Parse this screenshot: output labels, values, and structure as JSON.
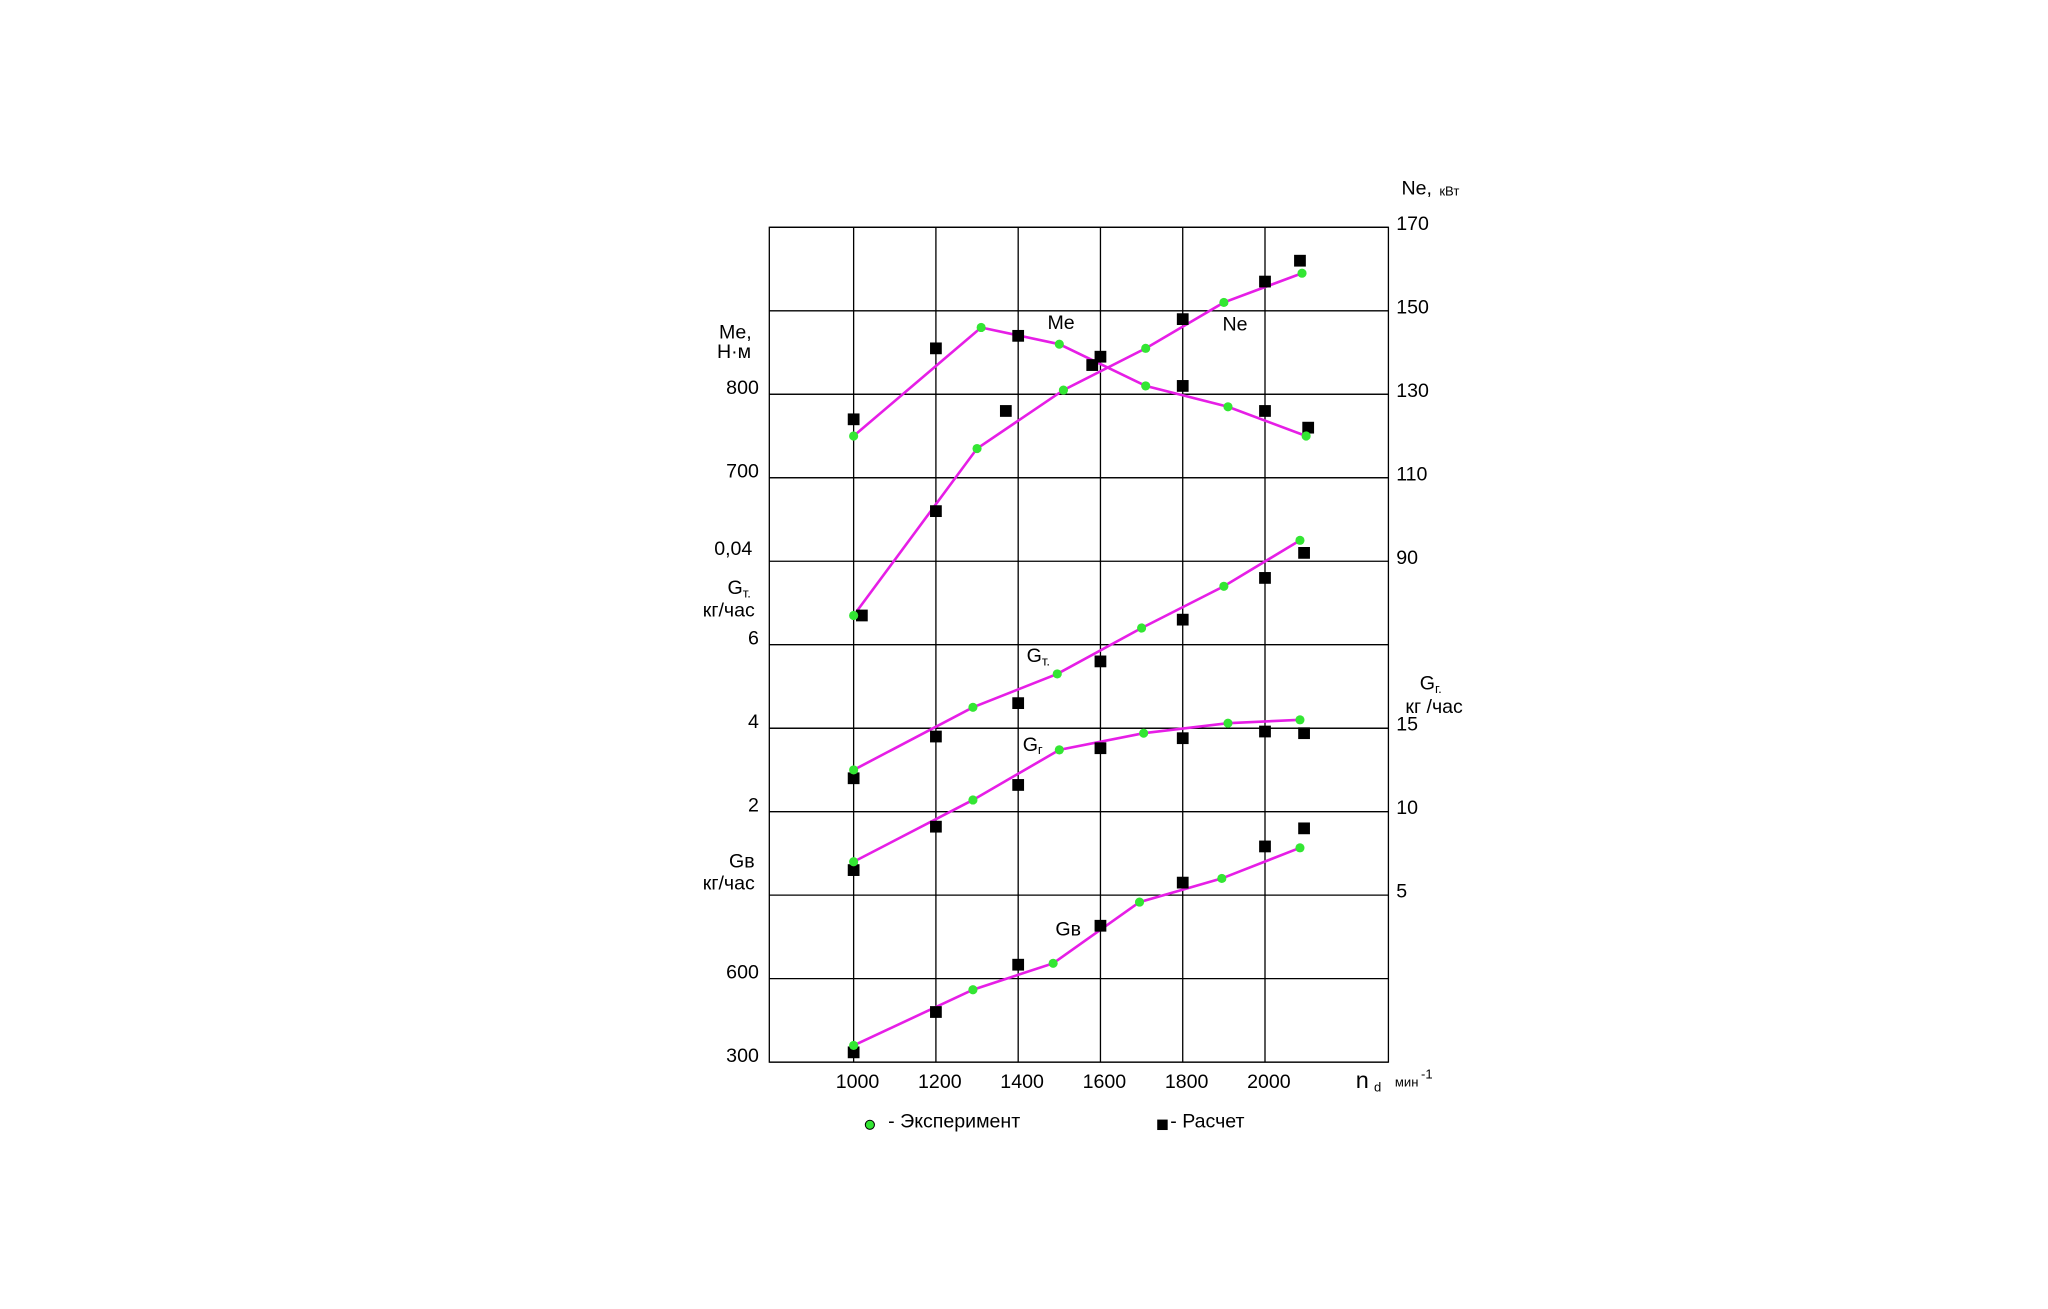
{
  "chart_data": {
    "type": "line",
    "xlim": [
      795,
      2300
    ],
    "xticks": [
      1000,
      1200,
      1400,
      1600,
      1800,
      2000
    ],
    "x_label": "n",
    "x_label_sub": "d",
    "x_unit": "мин",
    "x_unit_sup": "-1",
    "grid": true,
    "line_color": "#e61ee6",
    "annotation": "0,04",
    "axes": [
      {
        "title": "Me,",
        "unit": "Н·м",
        "side": "left",
        "ylim": [
          0,
          1000
        ],
        "yticks": [
          700,
          800
        ]
      },
      {
        "title": "Ne,",
        "unit": "кВт",
        "side": "right",
        "ylim": [
          -30,
          170
        ],
        "yticks": [
          90,
          110,
          130,
          150,
          170
        ]
      },
      {
        "title": "G",
        "title_sub": "т.",
        "unit": "кг/час",
        "side": "left",
        "ylim": [
          -4,
          16
        ],
        "yticks": [
          2,
          4,
          6
        ]
      },
      {
        "title": "G",
        "title_sub": "г.",
        "unit": "кг /час",
        "side": "right",
        "ylim": [
          -5,
          45
        ],
        "yticks": [
          5,
          10,
          15
        ]
      },
      {
        "title": "Gв",
        "unit": "кг/час",
        "side": "left",
        "ylim": [
          300,
          3300
        ],
        "yticks": [
          300,
          600
        ]
      }
    ],
    "legend": [
      {
        "name": "- Эксперимент",
        "color": "#33e633",
        "marker": "circle"
      },
      {
        "name": "- Расчет",
        "color": "#000000",
        "marker": "square"
      }
    ],
    "curves": [
      {
        "label": "Me",
        "axis": 0,
        "experiment": {
          "x": [
            1000,
            1310,
            1500,
            1710,
            1910,
            2100
          ],
          "values": [
            750,
            880,
            860,
            810,
            785,
            750
          ]
        },
        "calc": {
          "x": [
            1000,
            1200,
            1400,
            1600,
            1800,
            2000,
            2105
          ],
          "values": [
            770,
            855,
            870,
            845,
            810,
            780,
            760
          ]
        }
      },
      {
        "label": "Ne",
        "axis": 1,
        "experiment": {
          "x": [
            1000,
            1300,
            1510,
            1710,
            1900,
            2090
          ],
          "values": [
            77,
            117,
            131,
            141,
            152,
            159
          ]
        },
        "calc": {
          "x": [
            1020,
            1200,
            1370,
            1580,
            1800,
            2000,
            2085
          ],
          "values": [
            77,
            102,
            126,
            137,
            148,
            157,
            162
          ]
        }
      },
      {
        "label": "G",
        "label_sub": "т.",
        "axis": 2,
        "experiment": {
          "x": [
            1000,
            1290,
            1495,
            1700,
            1900,
            2085
          ],
          "values": [
            3.0,
            4.5,
            5.3,
            6.4,
            7.4,
            8.5
          ]
        },
        "calc": {
          "x": [
            1000,
            1200,
            1400,
            1600,
            1800,
            2000,
            2095
          ],
          "values": [
            2.8,
            3.8,
            4.6,
            5.6,
            6.6,
            7.6,
            8.2
          ]
        }
      },
      {
        "label": "G",
        "label_sub": "г",
        "axis": 3,
        "experiment": {
          "x": [
            1000,
            1290,
            1500,
            1705,
            1910,
            2085
          ],
          "values": [
            7.0,
            10.7,
            13.7,
            14.7,
            15.3,
            15.5
          ]
        },
        "calc": {
          "x": [
            1000,
            1200,
            1400,
            1600,
            1800,
            2000,
            2095
          ],
          "values": [
            6.5,
            9.1,
            11.6,
            13.8,
            14.4,
            14.8,
            14.7
          ]
        }
      },
      {
        "label": "Gв",
        "axis": 4,
        "experiment": {
          "x": [
            1000,
            1290,
            1485,
            1695,
            1895,
            2085
          ],
          "values": [
            360,
            560,
            655,
            875,
            960,
            1070
          ]
        },
        "calc": {
          "x": [
            1000,
            1200,
            1400,
            1600,
            1800,
            2000,
            2095
          ],
          "values": [
            335,
            480,
            650,
            790,
            945,
            1075,
            1140
          ]
        }
      }
    ]
  }
}
